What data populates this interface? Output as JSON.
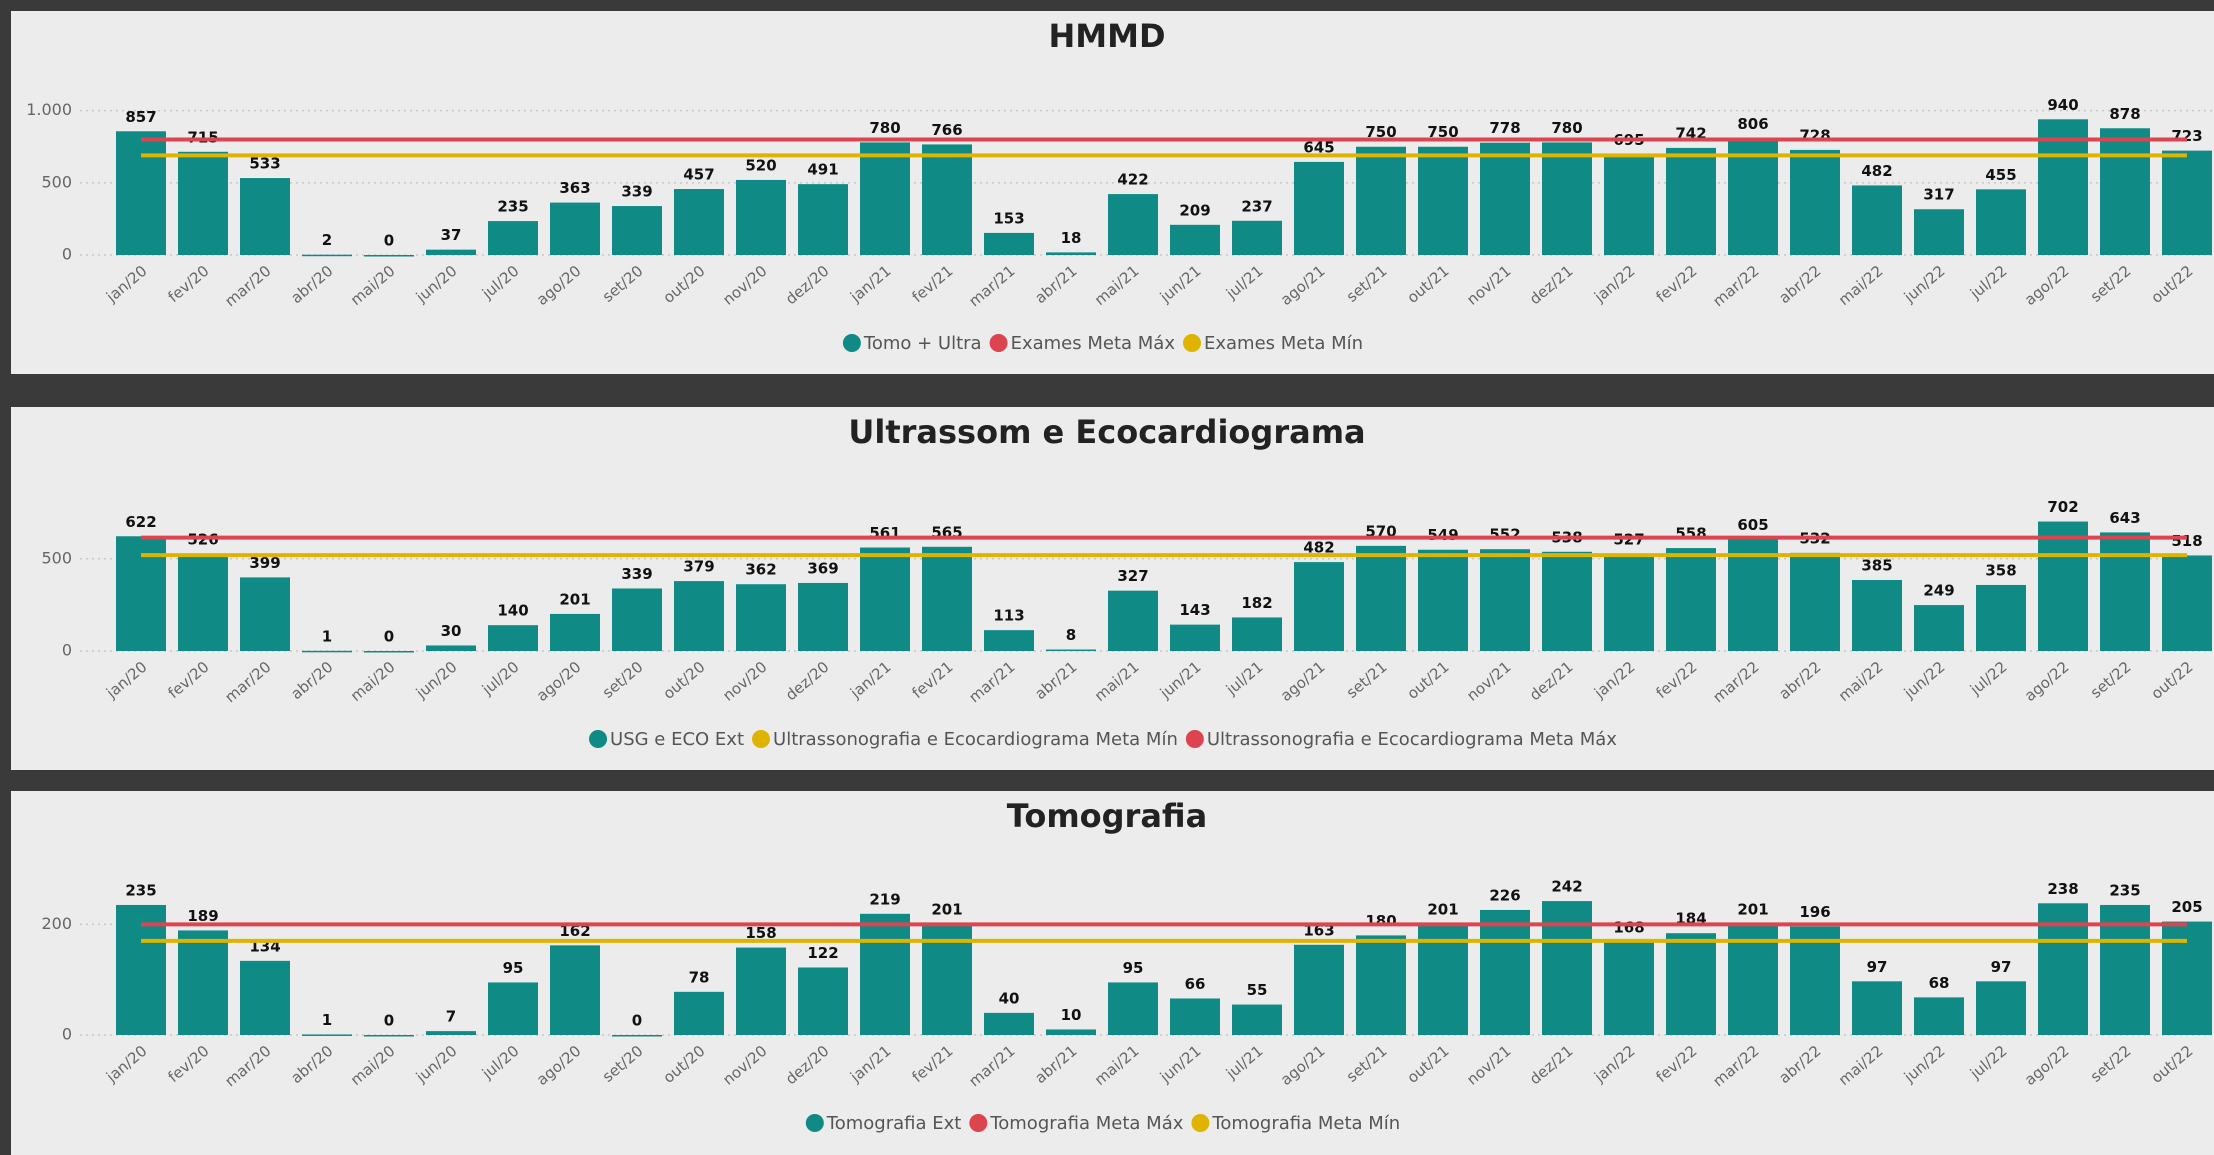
{
  "chart_data": [
    {
      "type": "bar",
      "title": "HMMD",
      "ylim": [
        0,
        1150
      ],
      "yticks": [
        0,
        500,
        {
          "value": 1000,
          "label": "1.000"
        }
      ],
      "grid": true,
      "categories": [
        "jan/20",
        "fev/20",
        "mar/20",
        "abr/20",
        "mai/20",
        "jun/20",
        "jul/20",
        "ago/20",
        "set/20",
        "out/20",
        "nov/20",
        "dez/20",
        "jan/21",
        "fev/21",
        "mar/21",
        "abr/21",
        "mai/21",
        "jun/21",
        "jul/21",
        "ago/21",
        "set/21",
        "out/21",
        "nov/21",
        "dez/21",
        "jan/22",
        "fev/22",
        "mar/22",
        "abr/22",
        "mai/22",
        "jun/22",
        "jul/22",
        "ago/22",
        "set/22",
        "out/22"
      ],
      "series": [
        {
          "name": "Tomo + Ultra",
          "color": "#0f8a84",
          "type": "bar",
          "values": [
            857,
            715,
            533,
            2,
            0,
            37,
            235,
            363,
            339,
            457,
            520,
            491,
            780,
            766,
            153,
            18,
            422,
            209,
            237,
            645,
            750,
            750,
            778,
            780,
            695,
            742,
            806,
            728,
            482,
            317,
            455,
            940,
            878,
            723
          ]
        },
        {
          "name": "Exames Meta Máx",
          "color": "#dc4450",
          "type": "line",
          "value": 800
        },
        {
          "name": "Exames Meta Mín",
          "color": "#dfb400",
          "type": "line",
          "value": 690
        }
      ]
    },
    {
      "type": "bar",
      "title": "Ultrassom e Ecocardiograma",
      "ylim": [
        0,
        900
      ],
      "yticks": [
        0,
        500
      ],
      "grid": true,
      "categories": [
        "jan/20",
        "fev/20",
        "mar/20",
        "abr/20",
        "mai/20",
        "jun/20",
        "jul/20",
        "ago/20",
        "set/20",
        "out/20",
        "nov/20",
        "dez/20",
        "jan/21",
        "fev/21",
        "mar/21",
        "abr/21",
        "mai/21",
        "jun/21",
        "jul/21",
        "ago/21",
        "set/21",
        "out/21",
        "nov/21",
        "dez/21",
        "jan/22",
        "fev/22",
        "mar/22",
        "abr/22",
        "mai/22",
        "jun/22",
        "jul/22",
        "ago/22",
        "set/22",
        "out/22"
      ],
      "series": [
        {
          "name": "USG e ECO Ext",
          "color": "#0f8a84",
          "type": "bar",
          "values": [
            622,
            526,
            399,
            1,
            0,
            30,
            140,
            201,
            339,
            379,
            362,
            369,
            561,
            565,
            113,
            8,
            327,
            143,
            182,
            482,
            570,
            549,
            552,
            538,
            527,
            558,
            605,
            532,
            385,
            249,
            358,
            702,
            643,
            518
          ]
        },
        {
          "name": "Ultrassonografia e Ecocardiograma Meta Mín",
          "color": "#dfb400",
          "type": "line",
          "value": 520
        },
        {
          "name": "Ultrassonografia e Ecocardiograma Meta Máx",
          "color": "#dc4450",
          "type": "line",
          "value": 615
        }
      ]
    },
    {
      "type": "bar",
      "title": "Tomografia",
      "ylim": [
        0,
        300
      ],
      "yticks": [
        0,
        200
      ],
      "grid": true,
      "categories": [
        "jan/20",
        "fev/20",
        "mar/20",
        "abr/20",
        "mai/20",
        "jun/20",
        "jul/20",
        "ago/20",
        "set/20",
        "out/20",
        "nov/20",
        "dez/20",
        "jan/21",
        "fev/21",
        "mar/21",
        "abr/21",
        "mai/21",
        "jun/21",
        "jul/21",
        "ago/21",
        "set/21",
        "out/21",
        "nov/21",
        "dez/21",
        "jan/22",
        "fev/22",
        "mar/22",
        "abr/22",
        "mai/22",
        "jun/22",
        "jul/22",
        "ago/22",
        "set/22",
        "out/22"
      ],
      "series": [
        {
          "name": "Tomografia Ext",
          "color": "#0f8a84",
          "type": "bar",
          "values": [
            235,
            189,
            134,
            1,
            0,
            7,
            95,
            162,
            0,
            78,
            158,
            122,
            219,
            201,
            40,
            10,
            95,
            66,
            55,
            163,
            180,
            201,
            226,
            242,
            168,
            184,
            201,
            196,
            97,
            68,
            97,
            238,
            235,
            205
          ]
        },
        {
          "name": "Tomografia Meta Máx",
          "color": "#dc4450",
          "type": "line",
          "value": 200
        },
        {
          "name": "Tomografia Meta Mín",
          "color": "#dfb400",
          "type": "line",
          "value": 170
        }
      ]
    }
  ]
}
